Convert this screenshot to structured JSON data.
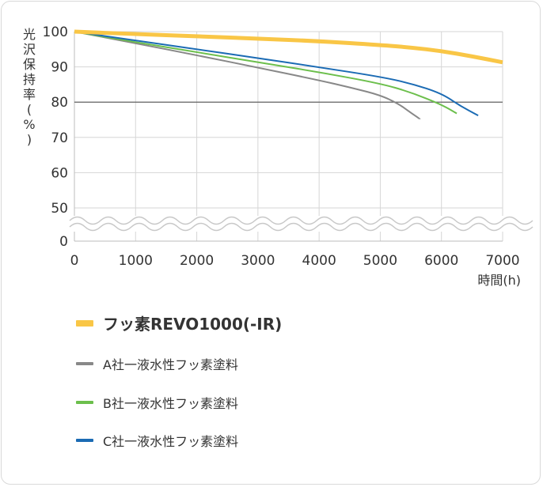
{
  "chart_data": {
    "type": "line",
    "ylabel": "光沢保持率(%)",
    "xlabel": "時間(h)",
    "xlim": [
      0,
      7000
    ],
    "x_ticks": [
      "0",
      "1000",
      "2000",
      "3000",
      "4000",
      "5000",
      "6000",
      "7000"
    ],
    "y_ticks": [
      "100",
      "90",
      "80",
      "70",
      "60",
      "50",
      "0"
    ],
    "ylim": [
      50,
      100
    ],
    "y_axis_break": true,
    "reference_line": 80,
    "grid": true,
    "legend_position": "bottom",
    "series": [
      {
        "name": "フッ素REVO1000(-IR)",
        "color": "#f9c646",
        "width": 5,
        "x": [
          0,
          1000,
          2000,
          3000,
          4000,
          5000,
          5500,
          6000,
          6500,
          7000
        ],
        "y": [
          100,
          99.3,
          98.7,
          98.0,
          97.3,
          96.2,
          95.5,
          94.5,
          93.0,
          91.3
        ]
      },
      {
        "name": "A社一液水性フッ素塗料",
        "color": "#888888",
        "width": 2,
        "x": [
          0,
          1000,
          2000,
          3000,
          4000,
          4500,
          5000,
          5300,
          5500,
          5650
        ],
        "y": [
          100,
          96.7,
          93.3,
          89.8,
          86.2,
          84.2,
          82.0,
          79.5,
          77.0,
          75.2
        ]
      },
      {
        "name": "B社一液水性フッ素塗料",
        "color": "#6cbf4c",
        "width": 2,
        "x": [
          0,
          1000,
          2000,
          3000,
          4000,
          5000,
          5500,
          6000,
          6250
        ],
        "y": [
          100,
          97.0,
          94.2,
          91.3,
          88.5,
          85.3,
          82.8,
          79.3,
          76.8
        ]
      },
      {
        "name": "C社一液水性フッ素塗料",
        "color": "#1b6bb4",
        "width": 2,
        "x": [
          0,
          1000,
          2000,
          3000,
          4000,
          5000,
          5500,
          6000,
          6300,
          6600
        ],
        "y": [
          100,
          97.5,
          95.0,
          92.5,
          89.9,
          87.2,
          85.3,
          82.5,
          79.0,
          76.2
        ]
      }
    ]
  }
}
